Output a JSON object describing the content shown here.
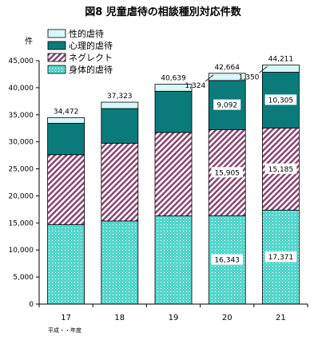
{
  "chart_data": {
    "type": "bar",
    "stacked": true,
    "title": "図8  児童虐待の相談種別対応件数",
    "ylabel": "件",
    "xlabel": "平成・・年度",
    "categories": [
      "17",
      "18",
      "19",
      "20",
      "21"
    ],
    "ylim": [
      0,
      45000
    ],
    "yticks": [
      0,
      5000,
      10000,
      15000,
      20000,
      25000,
      30000,
      35000,
      40000,
      45000
    ],
    "ytick_labels": [
      "0",
      "5,000",
      "10,000",
      "15,000",
      "20,000",
      "25,000",
      "30,000",
      "35,000",
      "40,000",
      "45,000"
    ],
    "grid": false,
    "legend_placement": "top-left",
    "legend_order": [
      3,
      2,
      1,
      0
    ],
    "series": [
      {
        "name": "身体的虐待",
        "values": [
          14712,
          15364,
          16296,
          16343,
          17371
        ],
        "color": "#55d6cc",
        "pattern": "dots"
      },
      {
        "name": "ネグレクト",
        "values": [
          12911,
          14365,
          15429,
          15905,
          15185
        ],
        "color": "#8a4470",
        "pattern": "diagonal"
      },
      {
        "name": "心理的虐待",
        "values": [
          5797,
          6414,
          7621,
          9092,
          10305
        ],
        "color": "#0b7a7a",
        "pattern": "solid"
      },
      {
        "name": "性的虐待",
        "values": [
          1052,
          1180,
          1293,
          1324,
          1350
        ],
        "color": "#d8f8f8",
        "pattern": "solid"
      }
    ],
    "totals": [
      34472,
      37323,
      40639,
      42664,
      44211
    ],
    "total_labels": [
      "34,472",
      "37,323",
      "40,639",
      "42,664",
      "44,211"
    ],
    "segment_labels": [
      {
        "category": "20",
        "series": 0,
        "text": "16,343"
      },
      {
        "category": "20",
        "series": 1,
        "text": "15,905"
      },
      {
        "category": "20",
        "series": 2,
        "text": "9,092"
      },
      {
        "category": "20",
        "series": 3,
        "text": "1,324"
      },
      {
        "category": "21",
        "series": 0,
        "text": "17,371"
      },
      {
        "category": "21",
        "series": 1,
        "text": "15,185"
      },
      {
        "category": "21",
        "series": 2,
        "text": "10,305"
      },
      {
        "category": "21",
        "series": 3,
        "text": "1,350"
      }
    ]
  }
}
